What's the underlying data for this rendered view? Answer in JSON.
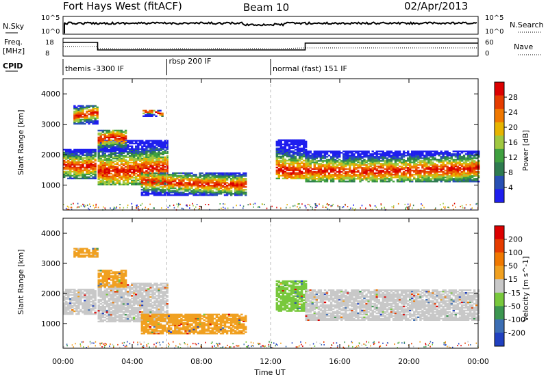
{
  "header": {
    "station": "Fort Hays West (fitACF)",
    "beam": "Beam 10",
    "date": "02/Apr/2013"
  },
  "meta_panels": {
    "nsky_label": "N.Sky",
    "nsearch_label": "N.Search",
    "noise_ticks": [
      "10^5",
      "10^0"
    ],
    "freq_label": "Freq.",
    "freq_unit": "[MHz]",
    "freq_ticks": [
      "18",
      "8"
    ],
    "nave_label": "Nave",
    "nave_ticks": [
      "60",
      "0"
    ],
    "cpid_label": "CPID",
    "cpid_segments": [
      {
        "label": "themis -3300 IF",
        "start_hour": 0,
        "end_hour": 6
      },
      {
        "label": "rbsp 200 IF",
        "start_hour": 6,
        "end_hour": 12
      },
      {
        "label": "normal (fast) 151 IF",
        "start_hour": 12,
        "end_hour": 24
      }
    ]
  },
  "chart_data": [
    {
      "type": "heatmap",
      "name": "power",
      "ylabel": "Slant Range [km]",
      "ylim": [
        180,
        4500
      ],
      "yticks": [
        "1000",
        "2000",
        "3000",
        "4000"
      ],
      "colorbar_label": "Power [dB]",
      "colorbar_ticks": [
        "4",
        "8",
        "12",
        "16",
        "20",
        "24",
        "28"
      ],
      "colorbar_colors": [
        "#1e1eee",
        "#2850b4",
        "#2e7b50",
        "#3fa03f",
        "#a0c840",
        "#e6b400",
        "#f07800",
        "#e63c00",
        "#dc0000"
      ],
      "echo_regions": [
        {
          "x_start": 0.0,
          "x_end": 1.9,
          "range_min": 1200,
          "range_max": 2150,
          "core_km": 1650
        },
        {
          "x_start": 2.0,
          "x_end": 6.0,
          "range_min": 1000,
          "range_max": 2450,
          "core_km": 1500
        },
        {
          "x_start": 0.6,
          "x_end": 2.0,
          "range_min": 3000,
          "range_max": 3600,
          "core_km": 3300
        },
        {
          "x_start": 2.0,
          "x_end": 3.6,
          "range_min": 2100,
          "range_max": 2800,
          "core_km": 2500
        },
        {
          "x_start": 4.6,
          "x_end": 5.8,
          "range_min": 3250,
          "range_max": 3450,
          "core_km": 3350
        },
        {
          "x_start": 4.5,
          "x_end": 10.5,
          "range_min": 650,
          "range_max": 1400,
          "core_km": 1050
        },
        {
          "x_start": 12.3,
          "x_end": 14.0,
          "range_min": 1200,
          "range_max": 2500,
          "core_km": 1500
        },
        {
          "x_start": 14.0,
          "x_end": 24.0,
          "range_min": 1100,
          "range_max": 2100,
          "core_km": 1500
        }
      ]
    },
    {
      "type": "heatmap",
      "name": "velocity",
      "ylabel": "Slant Range [km]",
      "ylim": [
        180,
        4500
      ],
      "yticks": [
        "1000",
        "2000",
        "3000",
        "4000"
      ],
      "colorbar_label": "Velocity [m s^-1]",
      "colorbar_ticks": [
        "200",
        "100",
        "50",
        "15",
        "-15",
        "-50",
        "-100",
        "-200"
      ],
      "colorbar_colors": [
        "#2040c0",
        "#3c6eb4",
        "#3c9650",
        "#78c83c",
        "#c8c8c8",
        "#f0a020",
        "#f07800",
        "#e63c00",
        "#dc0000"
      ],
      "echo_regions": [
        {
          "x_start": 0.0,
          "x_end": 1.9,
          "range_min": 1300,
          "range_max": 2150,
          "color": "#c8c8c8"
        },
        {
          "x_start": 2.0,
          "x_end": 6.0,
          "range_min": 1050,
          "range_max": 2350,
          "color": "#c8c8c8"
        },
        {
          "x_start": 0.6,
          "x_end": 2.0,
          "range_min": 3200,
          "range_max": 3500,
          "color": "#f0a020"
        },
        {
          "x_start": 2.0,
          "x_end": 3.6,
          "range_min": 2200,
          "range_max": 2750,
          "color": "#f0a020"
        },
        {
          "x_start": 4.5,
          "x_end": 10.5,
          "range_min": 650,
          "range_max": 1300,
          "color": "#f0a020"
        },
        {
          "x_start": 12.3,
          "x_end": 14.0,
          "range_min": 1400,
          "range_max": 2400,
          "color": "#78c83c"
        },
        {
          "x_start": 14.0,
          "x_end": 24.0,
          "range_min": 1100,
          "range_max": 2100,
          "color": "#c8c8c8"
        }
      ]
    }
  ],
  "xaxis": {
    "label": "Time UT",
    "ticks": [
      "00:00",
      "04:00",
      "08:00",
      "12:00",
      "16:00",
      "20:00",
      "00:00"
    ]
  }
}
